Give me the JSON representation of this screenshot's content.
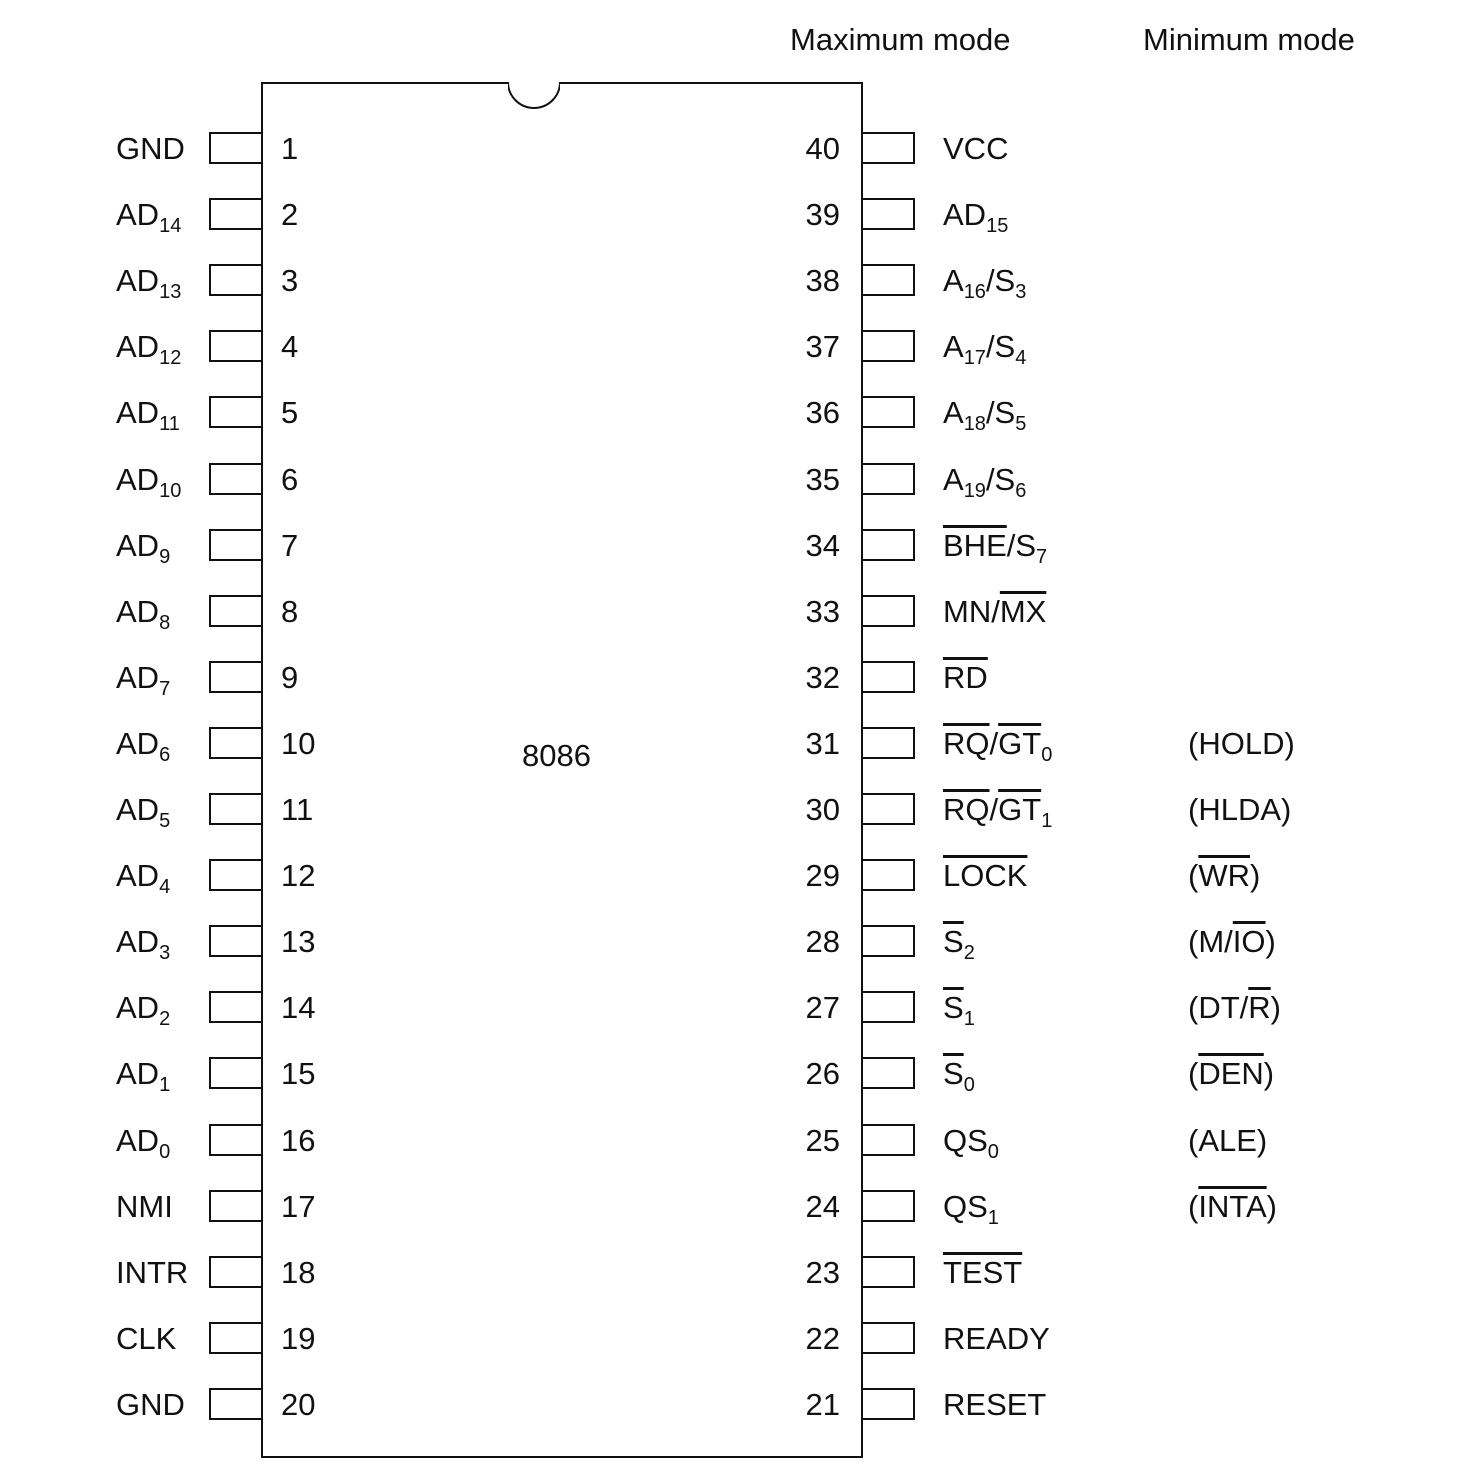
{
  "headers": {
    "maximum_mode": "Maximum mode",
    "minimum_mode": "Minimum mode"
  },
  "chip": {
    "name": "8086"
  },
  "left_pins": [
    {
      "num": "1",
      "label": [
        {
          "t": "GND"
        }
      ]
    },
    {
      "num": "2",
      "label": [
        {
          "t": "AD"
        },
        {
          "t": "14",
          "sub": true
        }
      ]
    },
    {
      "num": "3",
      "label": [
        {
          "t": "AD"
        },
        {
          "t": "13",
          "sub": true
        }
      ]
    },
    {
      "num": "4",
      "label": [
        {
          "t": "AD"
        },
        {
          "t": "12",
          "sub": true
        }
      ]
    },
    {
      "num": "5",
      "label": [
        {
          "t": "AD"
        },
        {
          "t": "11",
          "sub": true
        }
      ]
    },
    {
      "num": "6",
      "label": [
        {
          "t": "AD"
        },
        {
          "t": "10",
          "sub": true
        }
      ]
    },
    {
      "num": "7",
      "label": [
        {
          "t": "AD"
        },
        {
          "t": "9",
          "sub": true
        }
      ]
    },
    {
      "num": "8",
      "label": [
        {
          "t": "AD"
        },
        {
          "t": "8",
          "sub": true
        }
      ]
    },
    {
      "num": "9",
      "label": [
        {
          "t": "AD"
        },
        {
          "t": "7",
          "sub": true
        }
      ]
    },
    {
      "num": "10",
      "label": [
        {
          "t": "AD"
        },
        {
          "t": "6",
          "sub": true
        }
      ]
    },
    {
      "num": "11",
      "label": [
        {
          "t": "AD"
        },
        {
          "t": "5",
          "sub": true
        }
      ]
    },
    {
      "num": "12",
      "label": [
        {
          "t": "AD"
        },
        {
          "t": "4",
          "sub": true
        }
      ]
    },
    {
      "num": "13",
      "label": [
        {
          "t": "AD"
        },
        {
          "t": "3",
          "sub": true
        }
      ]
    },
    {
      "num": "14",
      "label": [
        {
          "t": "AD"
        },
        {
          "t": "2",
          "sub": true
        }
      ]
    },
    {
      "num": "15",
      "label": [
        {
          "t": "AD"
        },
        {
          "t": "1",
          "sub": true
        }
      ]
    },
    {
      "num": "16",
      "label": [
        {
          "t": "AD"
        },
        {
          "t": "0",
          "sub": true
        }
      ]
    },
    {
      "num": "17",
      "label": [
        {
          "t": "NMI"
        }
      ]
    },
    {
      "num": "18",
      "label": [
        {
          "t": "INTR"
        }
      ]
    },
    {
      "num": "19",
      "label": [
        {
          "t": "CLK"
        }
      ]
    },
    {
      "num": "20",
      "label": [
        {
          "t": "GND"
        }
      ]
    }
  ],
  "right_pins": [
    {
      "num": "40",
      "label": [
        {
          "t": "VCC"
        }
      ]
    },
    {
      "num": "39",
      "label": [
        {
          "t": "AD"
        },
        {
          "t": "15",
          "sub": true
        }
      ]
    },
    {
      "num": "38",
      "label": [
        {
          "t": "A"
        },
        {
          "t": "16",
          "sub": true
        },
        {
          "t": "/S"
        },
        {
          "t": "3",
          "sub": true
        }
      ]
    },
    {
      "num": "37",
      "label": [
        {
          "t": "A"
        },
        {
          "t": "17",
          "sub": true
        },
        {
          "t": "/S"
        },
        {
          "t": "4",
          "sub": true
        }
      ]
    },
    {
      "num": "36",
      "label": [
        {
          "t": "A"
        },
        {
          "t": "18",
          "sub": true
        },
        {
          "t": "/S"
        },
        {
          "t": "5",
          "sub": true
        }
      ]
    },
    {
      "num": "35",
      "label": [
        {
          "t": "A"
        },
        {
          "t": "19",
          "sub": true
        },
        {
          "t": "/S"
        },
        {
          "t": "6",
          "sub": true
        }
      ]
    },
    {
      "num": "34",
      "label": [
        {
          "t": "BHE",
          "ov": true
        },
        {
          "t": "/S"
        },
        {
          "t": "7",
          "sub": true
        }
      ]
    },
    {
      "num": "33",
      "label": [
        {
          "t": "MN/"
        },
        {
          "t": "MX",
          "ov": true
        }
      ]
    },
    {
      "num": "32",
      "label": [
        {
          "t": "RD",
          "ov": true
        }
      ]
    },
    {
      "num": "31",
      "label": [
        {
          "t": "RQ",
          "ov": true
        },
        {
          "t": "/"
        },
        {
          "t": "GT",
          "ov": true
        },
        {
          "t": "0",
          "sub": true
        }
      ],
      "min": [
        {
          "t": "(HOLD)"
        }
      ]
    },
    {
      "num": "30",
      "label": [
        {
          "t": "RQ",
          "ov": true
        },
        {
          "t": "/"
        },
        {
          "t": "GT",
          "ov": true
        },
        {
          "t": "1",
          "sub": true
        }
      ],
      "min": [
        {
          "t": "(HLDA)"
        }
      ]
    },
    {
      "num": "29",
      "label": [
        {
          "t": "LOCK",
          "ov": true
        }
      ],
      "min": [
        {
          "t": "("
        },
        {
          "t": "WR",
          "ov": true
        },
        {
          "t": ")"
        }
      ]
    },
    {
      "num": "28",
      "label": [
        {
          "t": "S",
          "ov": true
        },
        {
          "t": "2",
          "sub": true
        }
      ],
      "min": [
        {
          "t": "(M/"
        },
        {
          "t": "IO",
          "ov": true
        },
        {
          "t": ")"
        }
      ]
    },
    {
      "num": "27",
      "label": [
        {
          "t": "S",
          "ov": true
        },
        {
          "t": "1",
          "sub": true
        }
      ],
      "min": [
        {
          "t": "(DT/"
        },
        {
          "t": "R",
          "ov": true
        },
        {
          "t": ")"
        }
      ]
    },
    {
      "num": "26",
      "label": [
        {
          "t": "S",
          "ov": true
        },
        {
          "t": "0",
          "sub": true
        }
      ],
      "min": [
        {
          "t": "("
        },
        {
          "t": "DEN",
          "ov": true
        },
        {
          "t": ")"
        }
      ]
    },
    {
      "num": "25",
      "label": [
        {
          "t": "QS"
        },
        {
          "t": "0",
          "sub": true
        }
      ],
      "min": [
        {
          "t": "(ALE)"
        }
      ]
    },
    {
      "num": "24",
      "label": [
        {
          "t": "QS"
        },
        {
          "t": "1",
          "sub": true
        }
      ],
      "min": [
        {
          "t": "("
        },
        {
          "t": "INTA",
          "ov": true
        },
        {
          "t": ")"
        }
      ]
    },
    {
      "num": "23",
      "label": [
        {
          "t": "TEST",
          "ov": true
        }
      ]
    },
    {
      "num": "22",
      "label": [
        {
          "t": "READY"
        }
      ]
    },
    {
      "num": "21",
      "label": [
        {
          "t": "RESET"
        }
      ]
    }
  ]
}
